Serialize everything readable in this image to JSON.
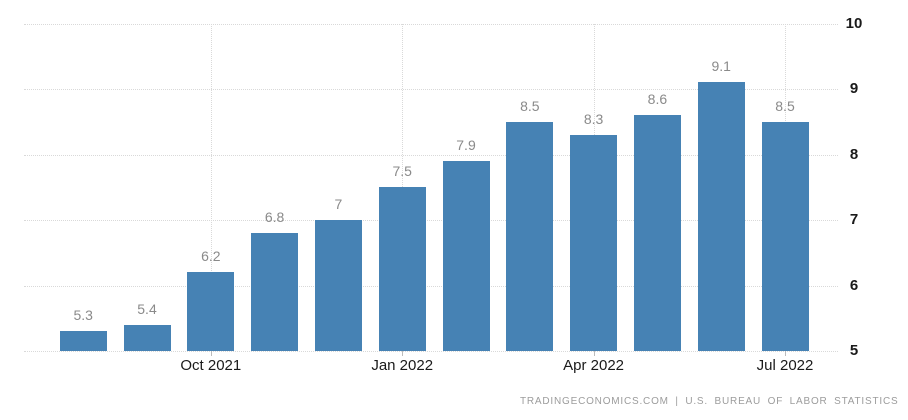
{
  "chart_data": {
    "type": "bar",
    "title": "",
    "values": [
      5.3,
      5.4,
      6.2,
      6.8,
      7,
      7.5,
      7.9,
      8.5,
      8.3,
      8.6,
      9.1,
      8.5
    ],
    "bar_labels": [
      "5.3",
      "5.4",
      "6.2",
      "6.8",
      "7",
      "7.5",
      "7.9",
      "8.5",
      "8.3",
      "8.6",
      "9.1",
      "8.5"
    ],
    "x_axis": {
      "tick_labels": [
        {
          "text": "Oct 2021",
          "bar_index": 2
        },
        {
          "text": "Jan 2022",
          "bar_index": 5
        },
        {
          "text": "Apr 2022",
          "bar_index": 8
        },
        {
          "text": "Jul 2022",
          "bar_index": 11
        }
      ]
    },
    "y_axis": {
      "side": "right",
      "ticks": [
        5,
        6,
        7,
        8,
        9,
        10
      ],
      "range": [
        5,
        10
      ]
    },
    "grid": {
      "style": "dotted",
      "horizontal": true,
      "vertical_at_labeled_months": true
    },
    "legend": null,
    "colors": {
      "bar": "#4682b4",
      "grid": "#d9d9d9",
      "value_label": "#8a8a8a",
      "axis_label": "#1a1a1a",
      "attribution": "#9c9c9c"
    }
  },
  "footer": {
    "attribution": "TRADINGECONOMICS.COM | U.S. BUREAU OF LABOR STATISTICS"
  }
}
